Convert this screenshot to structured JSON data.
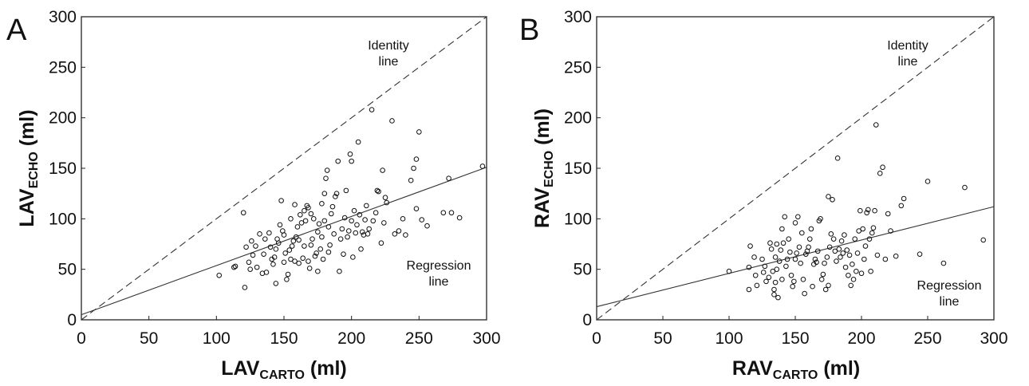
{
  "chart_data": [
    {
      "type": "scatter",
      "panel": "A",
      "xlabel": {
        "main": "LAV",
        "sub": "CARTO",
        "unit": " (ml)"
      },
      "ylabel": {
        "main": "LAV",
        "sub": "ECHO",
        "unit": " (ml)"
      },
      "xlim": [
        0,
        300
      ],
      "ylim": [
        0,
        300
      ],
      "xticks": [
        "0",
        "50",
        "100",
        "150",
        "200",
        "250",
        "300"
      ],
      "yticks": [
        "0",
        "50",
        "100",
        "150",
        "200",
        "250",
        "300"
      ],
      "grid": false,
      "legend": "none",
      "annotations": [
        [
          "Identity",
          "line"
        ],
        [
          "Regression",
          "line"
        ]
      ],
      "identity_line": [
        [
          0,
          0
        ],
        [
          300,
          300
        ]
      ],
      "regression_line": [
        [
          0,
          5
        ],
        [
          300,
          151
        ]
      ],
      "points": [
        [
          102,
          44
        ],
        [
          113,
          52
        ],
        [
          114,
          53
        ],
        [
          120,
          106
        ],
        [
          121,
          32
        ],
        [
          122,
          72
        ],
        [
          124,
          57
        ],
        [
          125,
          50
        ],
        [
          126,
          78
        ],
        [
          127,
          64
        ],
        [
          129,
          73
        ],
        [
          130,
          52
        ],
        [
          132,
          85
        ],
        [
          134,
          46
        ],
        [
          135,
          65
        ],
        [
          136,
          80
        ],
        [
          137,
          47
        ],
        [
          139,
          86
        ],
        [
          140,
          72
        ],
        [
          141,
          60
        ],
        [
          142,
          55
        ],
        [
          143,
          62
        ],
        [
          144,
          70
        ],
        [
          144,
          36
        ],
        [
          145,
          80
        ],
        [
          146,
          76
        ],
        [
          147,
          94
        ],
        [
          148,
          118
        ],
        [
          149,
          88
        ],
        [
          150,
          84
        ],
        [
          150,
          57
        ],
        [
          151,
          66
        ],
        [
          152,
          40
        ],
        [
          153,
          45
        ],
        [
          154,
          69
        ],
        [
          155,
          60
        ],
        [
          155,
          100
        ],
        [
          156,
          73
        ],
        [
          157,
          78
        ],
        [
          158,
          58
        ],
        [
          158,
          114
        ],
        [
          159,
          82
        ],
        [
          160,
          92
        ],
        [
          161,
          79
        ],
        [
          161,
          56
        ],
        [
          162,
          104
        ],
        [
          163,
          96
        ],
        [
          164,
          61
        ],
        [
          165,
          108
        ],
        [
          165,
          73
        ],
        [
          166,
          98
        ],
        [
          167,
          113
        ],
        [
          168,
          111
        ],
        [
          168,
          58
        ],
        [
          169,
          51
        ],
        [
          170,
          74
        ],
        [
          170,
          105
        ],
        [
          171,
          80
        ],
        [
          172,
          100
        ],
        [
          173,
          63
        ],
        [
          174,
          66
        ],
        [
          175,
          87
        ],
        [
          175,
          48
        ],
        [
          176,
          95
        ],
        [
          177,
          70
        ],
        [
          178,
          115
        ],
        [
          178,
          82
        ],
        [
          179,
          60
        ],
        [
          180,
          98
        ],
        [
          180,
          125
        ],
        [
          181,
          140
        ],
        [
          182,
          148
        ],
        [
          183,
          92
        ],
        [
          183,
          67
        ],
        [
          184,
          74
        ],
        [
          185,
          105
        ],
        [
          186,
          112
        ],
        [
          187,
          85
        ],
        [
          188,
          122
        ],
        [
          189,
          125
        ],
        [
          190,
          157
        ],
        [
          191,
          48
        ],
        [
          192,
          80
        ],
        [
          193,
          90
        ],
        [
          194,
          65
        ],
        [
          195,
          101
        ],
        [
          196,
          128
        ],
        [
          197,
          82
        ],
        [
          198,
          88
        ],
        [
          199,
          164
        ],
        [
          200,
          157
        ],
        [
          200,
          98
        ],
        [
          201,
          62
        ],
        [
          202,
          108
        ],
        [
          203,
          86
        ],
        [
          204,
          94
        ],
        [
          205,
          176
        ],
        [
          206,
          104
        ],
        [
          207,
          70
        ],
        [
          208,
          87
        ],
        [
          209,
          84
        ],
        [
          210,
          99
        ],
        [
          211,
          113
        ],
        [
          212,
          85
        ],
        [
          213,
          90
        ],
        [
          215,
          208
        ],
        [
          216,
          98
        ],
        [
          218,
          106
        ],
        [
          219,
          128
        ],
        [
          220,
          127
        ],
        [
          222,
          76
        ],
        [
          223,
          148
        ],
        [
          224,
          96
        ],
        [
          225,
          121
        ],
        [
          226,
          116
        ],
        [
          230,
          197
        ],
        [
          232,
          85
        ],
        [
          235,
          88
        ],
        [
          238,
          100
        ],
        [
          240,
          84
        ],
        [
          244,
          138
        ],
        [
          246,
          150
        ],
        [
          248,
          159
        ],
        [
          248,
          110
        ],
        [
          250,
          186
        ],
        [
          252,
          99
        ],
        [
          256,
          93
        ],
        [
          268,
          106
        ],
        [
          272,
          140
        ],
        [
          274,
          106
        ],
        [
          280,
          101
        ],
        [
          297,
          152
        ]
      ]
    },
    {
      "type": "scatter",
      "panel": "B",
      "xlabel": {
        "main": "RAV",
        "sub": "CARTO",
        "unit": " (ml)"
      },
      "ylabel": {
        "main": "RAV",
        "sub": "ECHO",
        "unit": " (ml)"
      },
      "xlim": [
        0,
        300
      ],
      "ylim": [
        0,
        300
      ],
      "xticks": [
        "0",
        "50",
        "100",
        "150",
        "200",
        "250",
        "300"
      ],
      "yticks": [
        "0",
        "50",
        "100",
        "150",
        "200",
        "250",
        "300"
      ],
      "grid": false,
      "legend": "none",
      "annotations": [
        [
          "Identity",
          "line"
        ],
        [
          "Regression",
          "line"
        ]
      ],
      "identity_line": [
        [
          0,
          0
        ],
        [
          300,
          300
        ]
      ],
      "regression_line": [
        [
          0,
          13
        ],
        [
          300,
          112
        ]
      ],
      "points": [
        [
          100,
          48
        ],
        [
          115,
          30
        ],
        [
          115,
          52
        ],
        [
          116,
          73
        ],
        [
          119,
          62
        ],
        [
          120,
          44
        ],
        [
          121,
          34
        ],
        [
          125,
          60
        ],
        [
          126,
          47
        ],
        [
          127,
          53
        ],
        [
          128,
          38
        ],
        [
          130,
          42
        ],
        [
          131,
          76
        ],
        [
          132,
          70
        ],
        [
          133,
          48
        ],
        [
          134,
          25
        ],
        [
          134,
          30
        ],
        [
          135,
          37
        ],
        [
          135,
          62
        ],
        [
          136,
          75
        ],
        [
          136,
          50
        ],
        [
          137,
          22
        ],
        [
          138,
          58
        ],
        [
          139,
          69
        ],
        [
          140,
          40
        ],
        [
          140,
          90
        ],
        [
          141,
          76
        ],
        [
          142,
          102
        ],
        [
          143,
          53
        ],
        [
          144,
          60
        ],
        [
          145,
          80
        ],
        [
          146,
          67
        ],
        [
          147,
          44
        ],
        [
          148,
          33
        ],
        [
          149,
          38
        ],
        [
          150,
          96
        ],
        [
          150,
          60
        ],
        [
          151,
          66
        ],
        [
          152,
          102
        ],
        [
          153,
          72
        ],
        [
          154,
          56
        ],
        [
          155,
          86
        ],
        [
          156,
          40
        ],
        [
          157,
          26
        ],
        [
          158,
          65
        ],
        [
          159,
          68
        ],
        [
          160,
          72
        ],
        [
          161,
          80
        ],
        [
          162,
          90
        ],
        [
          163,
          33
        ],
        [
          164,
          55
        ],
        [
          165,
          60
        ],
        [
          166,
          57
        ],
        [
          167,
          68
        ],
        [
          168,
          98
        ],
        [
          169,
          100
        ],
        [
          170,
          40
        ],
        [
          171,
          45
        ],
        [
          172,
          56
        ],
        [
          173,
          30
        ],
        [
          174,
          62
        ],
        [
          175,
          34
        ],
        [
          175,
          122
        ],
        [
          176,
          72
        ],
        [
          177,
          85
        ],
        [
          178,
          119
        ],
        [
          179,
          80
        ],
        [
          180,
          68
        ],
        [
          181,
          58
        ],
        [
          182,
          160
        ],
        [
          183,
          70
        ],
        [
          184,
          62
        ],
        [
          185,
          78
        ],
        [
          186,
          66
        ],
        [
          187,
          84
        ],
        [
          188,
          52
        ],
        [
          189,
          69
        ],
        [
          190,
          44
        ],
        [
          191,
          64
        ],
        [
          192,
          34
        ],
        [
          193,
          55
        ],
        [
          194,
          40
        ],
        [
          195,
          80
        ],
        [
          196,
          48
        ],
        [
          197,
          66
        ],
        [
          198,
          88
        ],
        [
          199,
          108
        ],
        [
          200,
          46
        ],
        [
          201,
          90
        ],
        [
          202,
          60
        ],
        [
          203,
          73
        ],
        [
          204,
          106
        ],
        [
          205,
          109
        ],
        [
          206,
          80
        ],
        [
          207,
          48
        ],
        [
          208,
          86
        ],
        [
          209,
          91
        ],
        [
          210,
          108
        ],
        [
          211,
          193
        ],
        [
          212,
          64
        ],
        [
          214,
          145
        ],
        [
          216,
          151
        ],
        [
          218,
          60
        ],
        [
          220,
          105
        ],
        [
          222,
          88
        ],
        [
          226,
          63
        ],
        [
          230,
          113
        ],
        [
          232,
          120
        ],
        [
          244,
          65
        ],
        [
          250,
          137
        ],
        [
          262,
          56
        ],
        [
          278,
          131
        ],
        [
          292,
          79
        ]
      ]
    }
  ]
}
